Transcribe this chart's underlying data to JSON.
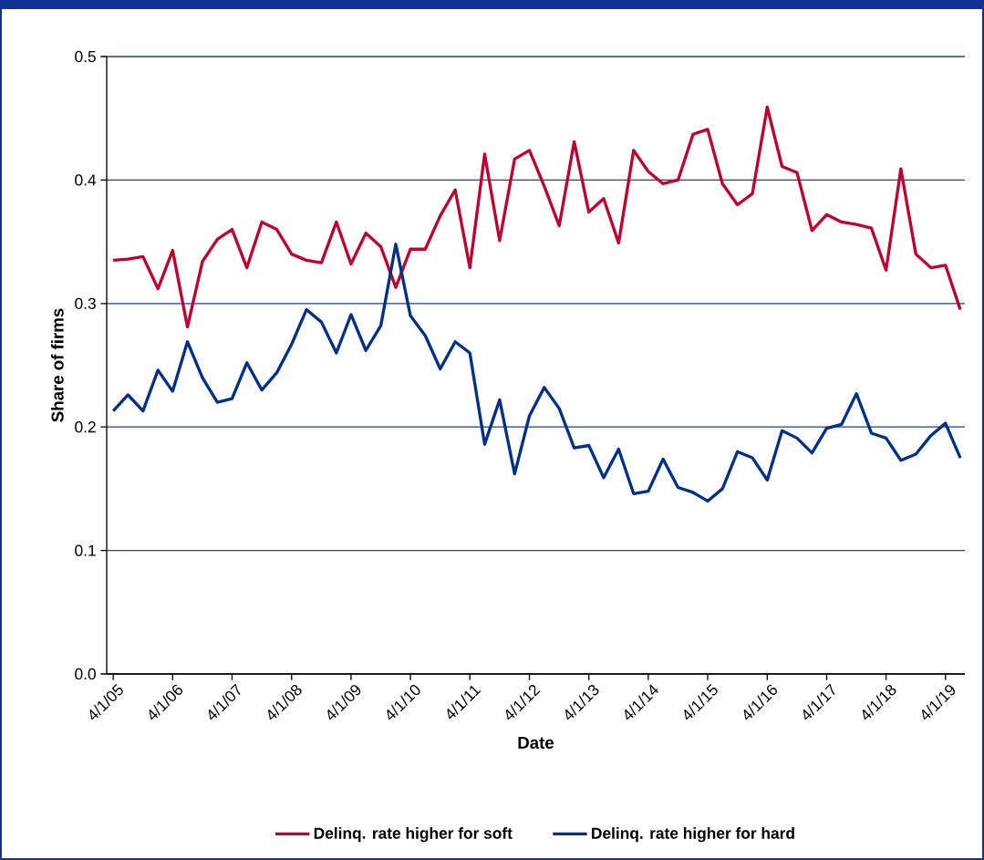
{
  "chart_data": {
    "type": "line",
    "xlabel": "Date",
    "ylabel": "Share of firms",
    "x": [
      "2005-04-01",
      "2005-07-01",
      "2005-10-01",
      "2006-01-01",
      "2006-04-01",
      "2006-07-01",
      "2006-10-01",
      "2007-01-01",
      "2007-04-01",
      "2007-07-01",
      "2007-10-01",
      "2008-01-01",
      "2008-04-01",
      "2008-07-01",
      "2008-10-01",
      "2009-01-01",
      "2009-04-01",
      "2009-07-01",
      "2009-10-01",
      "2010-01-01",
      "2010-04-01",
      "2010-07-01",
      "2010-10-01",
      "2011-01-01",
      "2011-04-01",
      "2011-07-01",
      "2011-10-01",
      "2012-01-01",
      "2012-04-01",
      "2012-07-01",
      "2012-10-01",
      "2013-01-01",
      "2013-04-01",
      "2013-07-01",
      "2013-10-01",
      "2014-01-01",
      "2014-04-01",
      "2014-07-01",
      "2014-10-01",
      "2015-01-01",
      "2015-04-01",
      "2015-07-01",
      "2015-10-01",
      "2016-01-01",
      "2016-04-01",
      "2016-07-01",
      "2016-10-01",
      "2017-01-01",
      "2017-04-01",
      "2017-07-01",
      "2017-10-01",
      "2018-01-01",
      "2018-04-01",
      "2018-07-01",
      "2018-10-01",
      "2019-01-01",
      "2019-04-01",
      "2019-07-01"
    ],
    "series": [
      {
        "name": "Delinq. rate higher for soft",
        "color": "#c0002f",
        "values": [
          0.335,
          0.336,
          0.338,
          0.312,
          0.343,
          0.281,
          0.334,
          0.352,
          0.36,
          0.329,
          0.366,
          0.36,
          0.34,
          0.335,
          0.333,
          0.366,
          0.332,
          0.357,
          0.346,
          0.313,
          0.344,
          0.344,
          0.371,
          0.392,
          0.329,
          0.421,
          0.351,
          0.417,
          0.424,
          0.395,
          0.363,
          0.431,
          0.374,
          0.385,
          0.349,
          0.424,
          0.407,
          0.397,
          0.4,
          0.437,
          0.441,
          0.397,
          0.38,
          0.389,
          0.459,
          0.411,
          0.406,
          0.359,
          0.372,
          0.366,
          0.364,
          0.361,
          0.327,
          0.409,
          0.34,
          0.329,
          0.331,
          0.295
        ]
      },
      {
        "name": "Delinq. rate higher for hard",
        "color": "#003087",
        "values": [
          0.213,
          0.226,
          0.213,
          0.246,
          0.229,
          0.269,
          0.24,
          0.22,
          0.223,
          0.252,
          0.23,
          0.244,
          0.267,
          0.295,
          0.285,
          0.26,
          0.291,
          0.262,
          0.282,
          0.348,
          0.29,
          0.274,
          0.247,
          0.269,
          0.26,
          0.186,
          0.222,
          0.162,
          0.209,
          0.232,
          0.215,
          0.183,
          0.185,
          0.159,
          0.182,
          0.146,
          0.148,
          0.174,
          0.151,
          0.147,
          0.14,
          0.15,
          0.18,
          0.175,
          0.157,
          0.197,
          0.191,
          0.179,
          0.199,
          0.202,
          0.227,
          0.195,
          0.191,
          0.173,
          0.178,
          0.193,
          0.203,
          0.175
        ]
      }
    ],
    "xlim": [
      "2005-02-20",
      "2019-07-29"
    ],
    "xticks": [
      {
        "value": "2005-04-01",
        "label": "4/1/05"
      },
      {
        "value": "2006-04-01",
        "label": "4/1/06"
      },
      {
        "value": "2007-04-01",
        "label": "4/1/07"
      },
      {
        "value": "2008-04-01",
        "label": "4/1/08"
      },
      {
        "value": "2009-04-01",
        "label": "4/1/09"
      },
      {
        "value": "2010-04-01",
        "label": "4/1/10"
      },
      {
        "value": "2011-04-01",
        "label": "4/1/11"
      },
      {
        "value": "2012-04-01",
        "label": "4/1/12"
      },
      {
        "value": "2013-04-01",
        "label": "4/1/13"
      },
      {
        "value": "2014-04-01",
        "label": "4/1/14"
      },
      {
        "value": "2015-04-01",
        "label": "4/1/15"
      },
      {
        "value": "2016-04-01",
        "label": "4/1/16"
      },
      {
        "value": "2017-04-01",
        "label": "4/1/17"
      },
      {
        "value": "2018-04-01",
        "label": "4/1/18"
      },
      {
        "value": "2019-04-01",
        "label": "4/1/19"
      }
    ],
    "ylim": [
      0,
      0.5
    ],
    "yticks": [
      {
        "value": 0,
        "label": "0.0"
      },
      {
        "value": 0.1,
        "label": "0.1"
      },
      {
        "value": 0.2,
        "label": "0.2"
      },
      {
        "value": 0.3,
        "label": "0.3"
      },
      {
        "value": 0.4,
        "label": "0.4"
      },
      {
        "value": 0.5,
        "label": "0.5"
      }
    ],
    "grid": "y",
    "legend": "bottom",
    "marker": "none",
    "line_style": "solid"
  }
}
